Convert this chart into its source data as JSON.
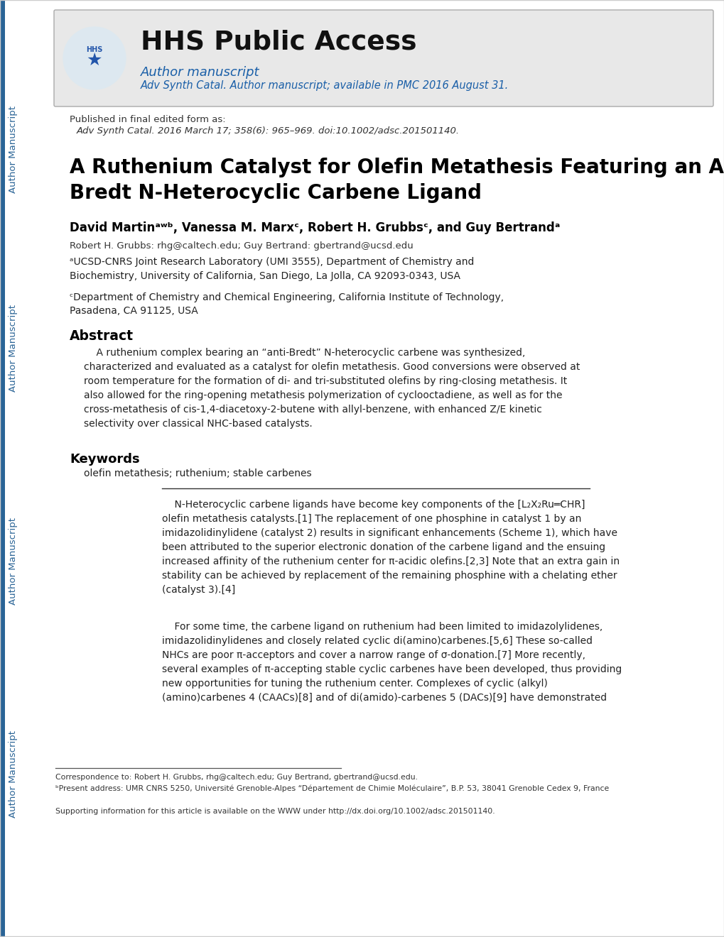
{
  "bg_color": "#ffffff",
  "dark_blue": "#2a6496",
  "blue_color": "#1a5fa8",
  "hhs_title": "HHS Public Access",
  "hhs_subtitle": "Author manuscript",
  "hhs_journal": "Adv Synth Catal. Author manuscript; available in PMC 2016 August 31.",
  "published_line1": "Published in final edited form as:",
  "published_line2": "Adv Synth Catal. 2016 March 17; 358(6): 965–969. doi:10.1002/adsc.201501140.",
  "article_title_line1": "A Ruthenium Catalyst for Olefin Metathesis Featuring an Anti-",
  "article_title_line2": "Bredt N-Heterocyclic Carbene Ligand",
  "correspondence": "Robert H. Grubbs: rhg@caltech.edu; Guy Bertrand: gbertrand@ucsd.edu",
  "affil_a": "ᵃUCSD-CNRS Joint Research Laboratory (UMI 3555), Department of Chemistry and\nBiochemistry, University of California, San Diego, La Jolla, CA 92093-0343, USA",
  "affil_c": "ᶜDepartment of Chemistry and Chemical Engineering, California Institute of Technology,\nPasadena, CA 91125, USA",
  "abstract_title": "Abstract",
  "keywords_title": "Keywords",
  "keywords_text": "olefin metathesis; ruthenium; stable carbenes",
  "footnote1": "Correspondence to: Robert H. Grubbs, rhg@caltech.edu; Guy Bertrand, gbertrand@ucsd.edu.",
  "footnote2": "ᵇPresent address: UMR CNRS 5250, Université Grenoble-Alpes “Département de Chimie Moléculaire”, B.P. 53, 38041 Grenoble Cedex 9, France",
  "footnote3": "Supporting information for this article is available on the WWW under http://dx.doi.org/10.1002/adsc.201501140."
}
